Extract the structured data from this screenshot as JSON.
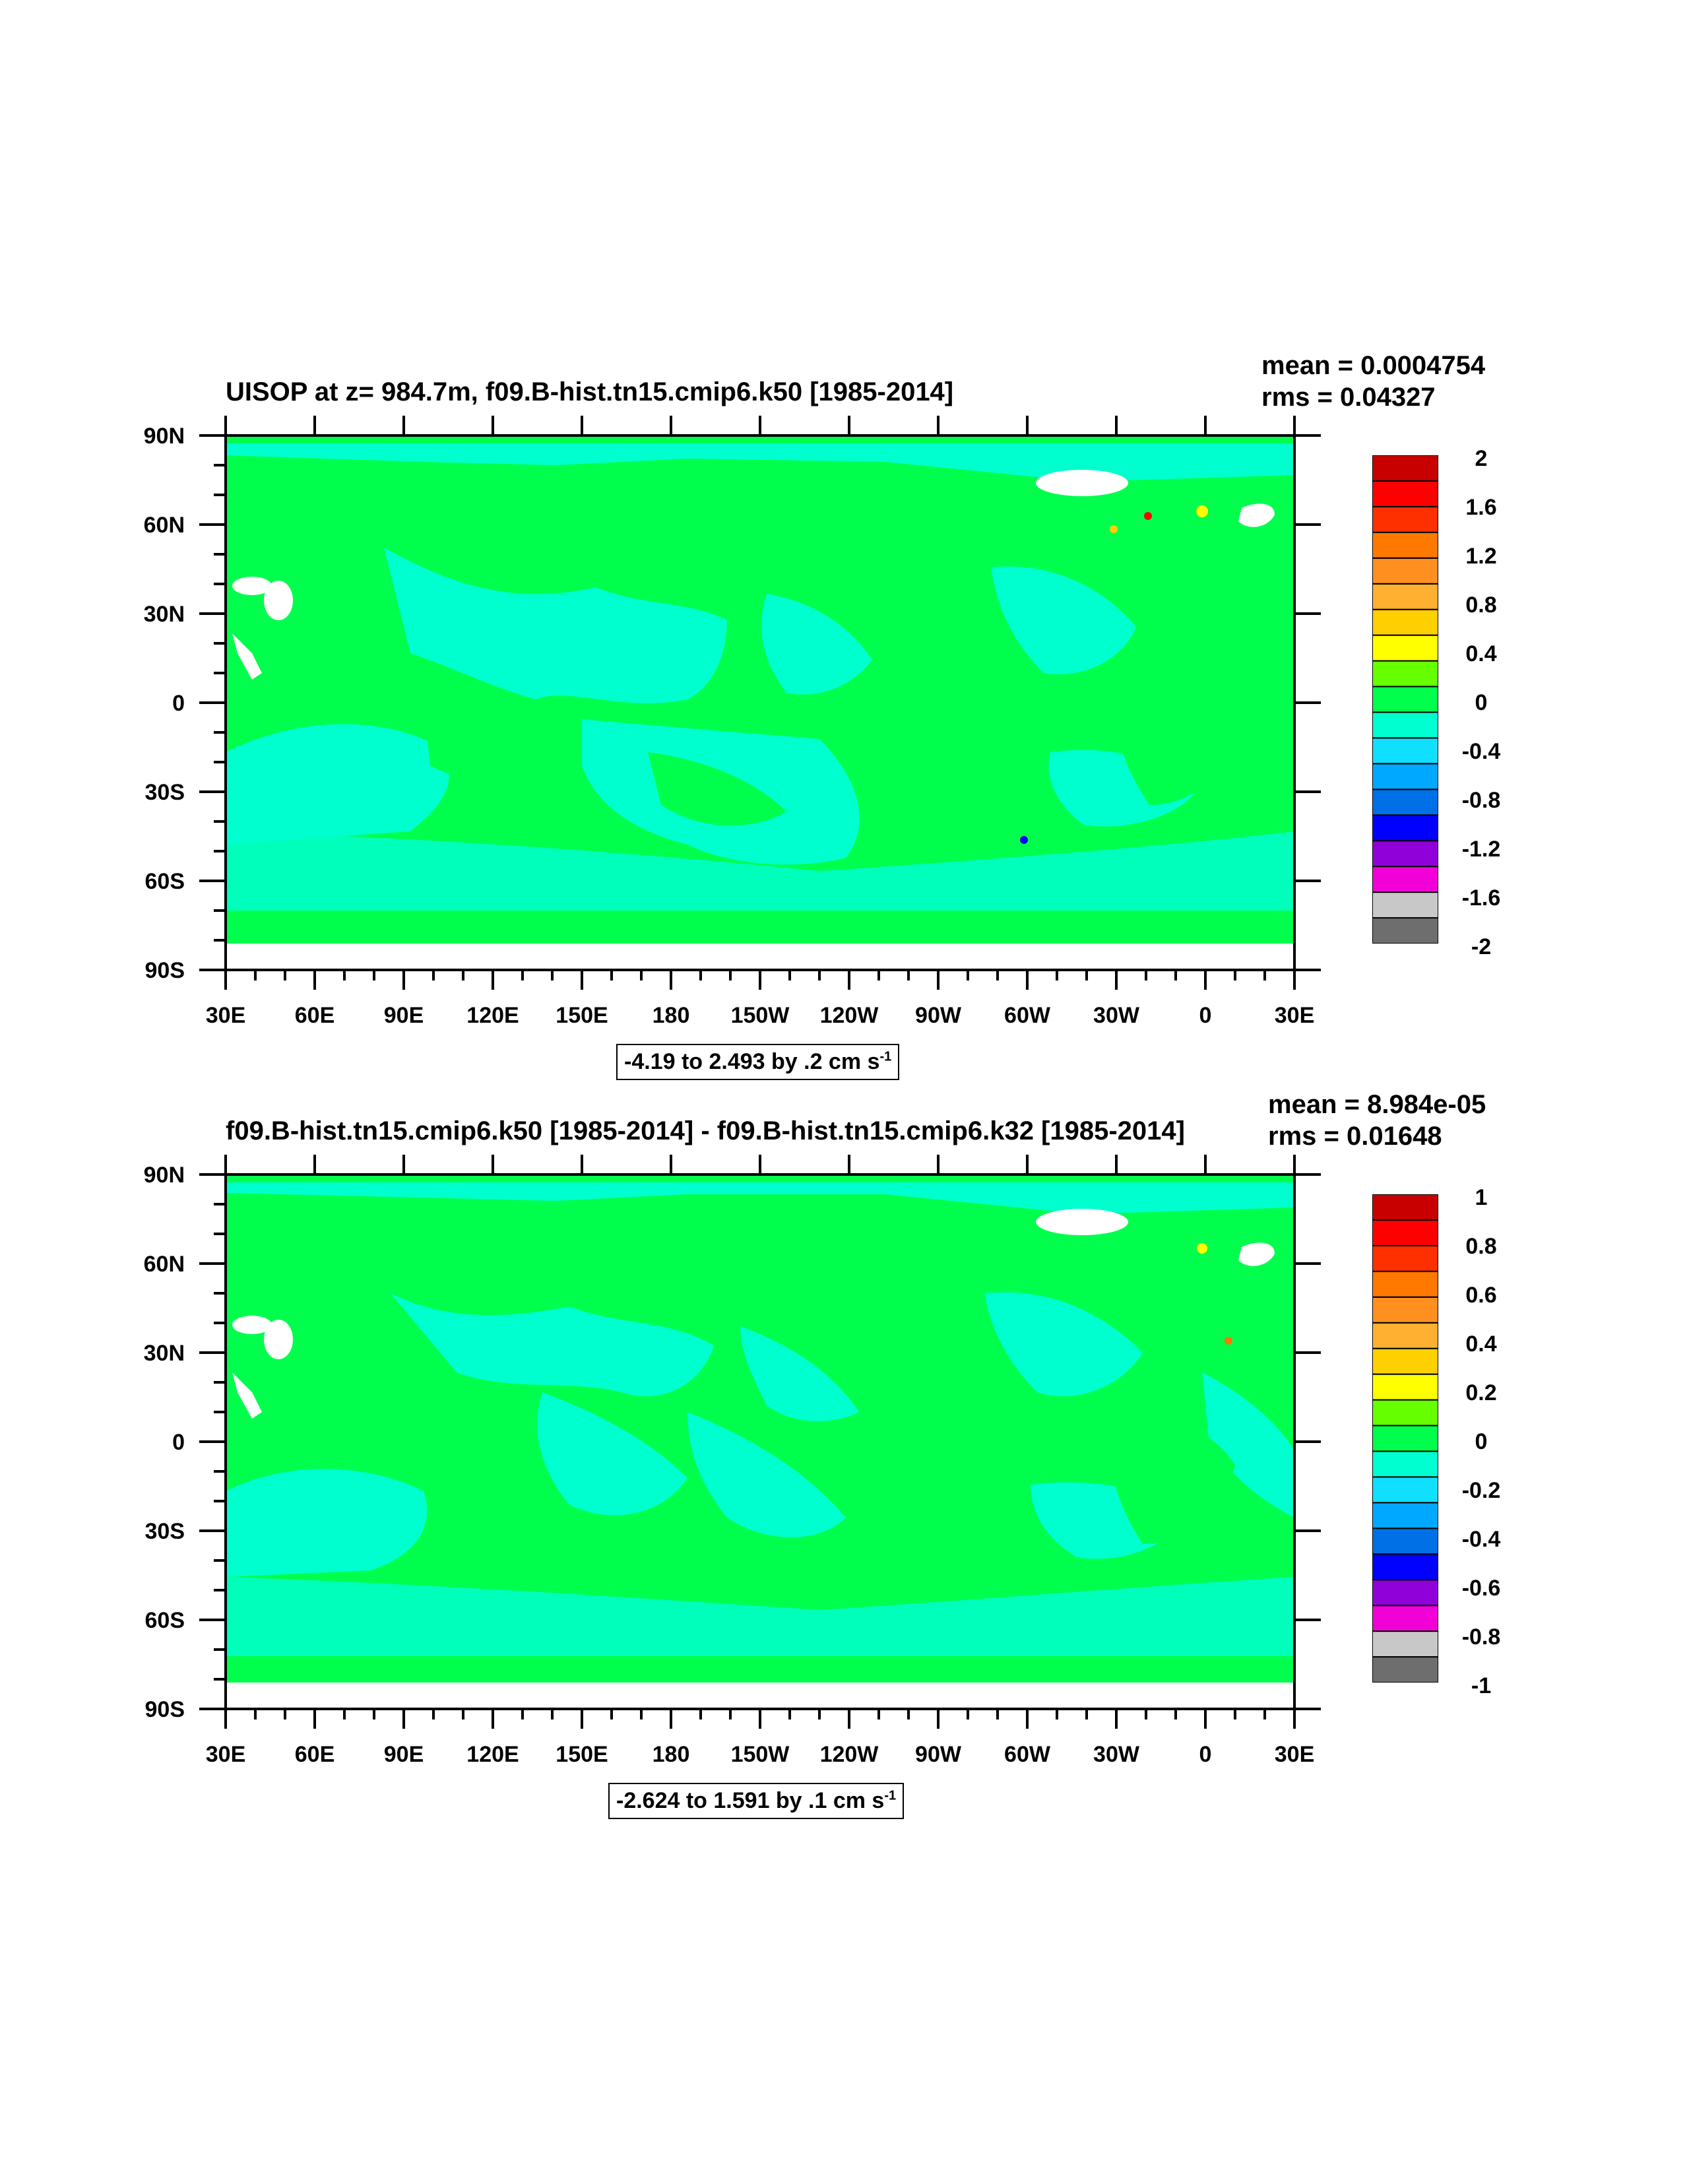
{
  "colors": {
    "land_fill": "#00ff4c",
    "ocean_fill": "#00ffce",
    "mask_white": "#ffffff",
    "colorbar": [
      "#6e6e6e",
      "#c8c8c8",
      "#f200d8",
      "#9000d8",
      "#0000ff",
      "#0070e6",
      "#00a8ff",
      "#10e0ff",
      "#00ffd0",
      "#00ff4c",
      "#66ff00",
      "#ffff00",
      "#ffd000",
      "#ffb030",
      "#ff9020",
      "#ff7800",
      "#ff3000",
      "#ff0000",
      "#c80000"
    ]
  },
  "chart_data": [
    {
      "type": "heatmap",
      "title": "UISOP at z= 984.7m, f09.B-hist.tn15.cmip6.k50 [1985-2014]",
      "stats": {
        "mean": "mean = 0.0004754",
        "rms": "rms = 0.04327"
      },
      "y_ticks": [
        "90N",
        "60N",
        "30N",
        "0",
        "30S",
        "60S",
        "90S"
      ],
      "x_ticks": [
        "30E",
        "60E",
        "90E",
        "120E",
        "150E",
        "180",
        "150W",
        "120W",
        "90W",
        "60W",
        "30W",
        "0",
        "30E"
      ],
      "xlim": [
        30,
        390
      ],
      "ylim": [
        -90,
        90
      ],
      "colorbar_labels": [
        "2",
        "1.6",
        "1.2",
        "0.8",
        "0.4",
        "0",
        "-0.4",
        "-0.8",
        "-1.2",
        "-1.6",
        "-2"
      ],
      "colorbar_range": [
        -2,
        2
      ],
      "range_note": {
        "text": "-4.19 to 2.493 by .2 cm s",
        "sup": "-1"
      }
    },
    {
      "type": "heatmap",
      "title": "f09.B-hist.tn15.cmip6.k50 [1985-2014] - f09.B-hist.tn15.cmip6.k32 [1985-2014]",
      "stats": {
        "mean": "mean = 8.984e-05",
        "rms": "rms = 0.01648"
      },
      "y_ticks": [
        "90N",
        "60N",
        "30N",
        "0",
        "30S",
        "60S",
        "90S"
      ],
      "x_ticks": [
        "30E",
        "60E",
        "90E",
        "120E",
        "150E",
        "180",
        "150W",
        "120W",
        "90W",
        "60W",
        "30W",
        "0",
        "30E"
      ],
      "xlim": [
        30,
        390
      ],
      "ylim": [
        -90,
        90
      ],
      "colorbar_labels": [
        "1",
        "0.8",
        "0.6",
        "0.4",
        "0.2",
        "0",
        "-0.2",
        "-0.4",
        "-0.6",
        "-0.8",
        "-1"
      ],
      "colorbar_range": [
        -1,
        1
      ],
      "range_note": {
        "text": "-2.624 to 1.591 by .1 cm s",
        "sup": "-1"
      }
    }
  ]
}
